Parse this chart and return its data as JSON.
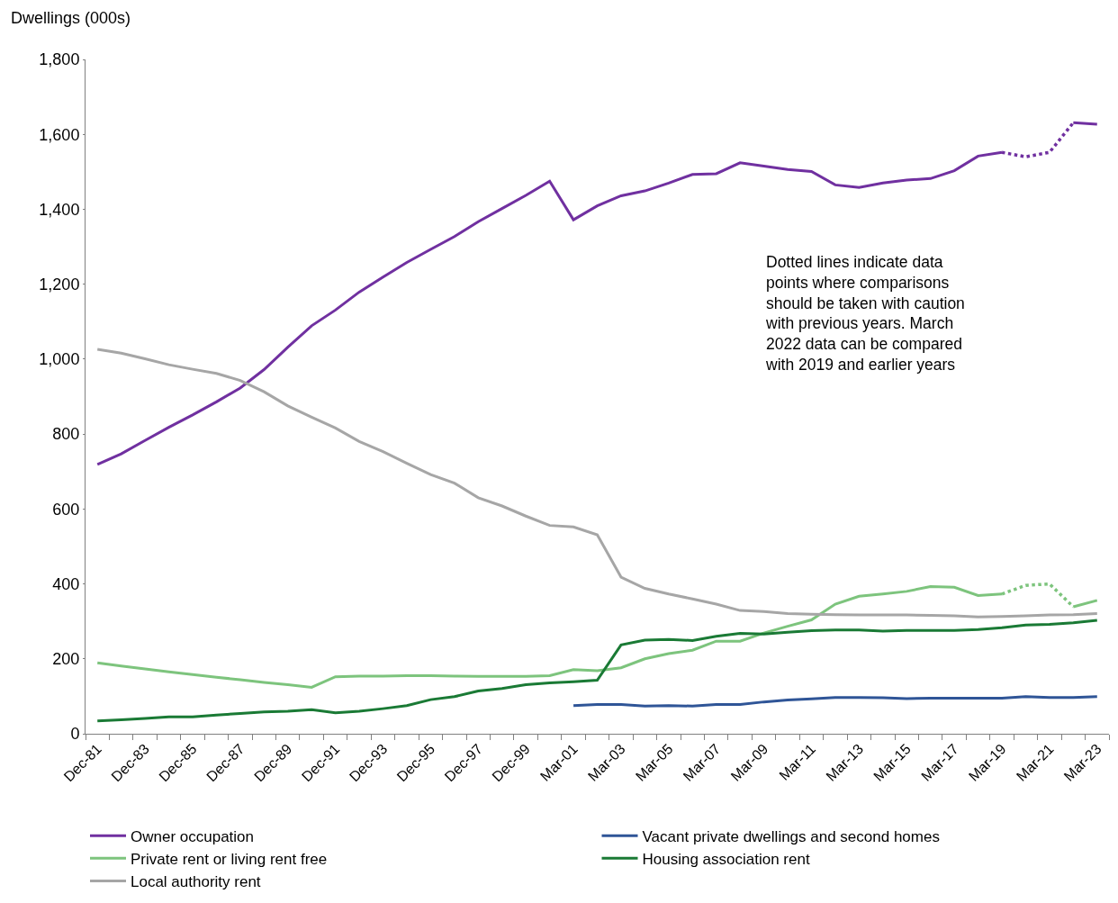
{
  "chart_data": {
    "type": "line",
    "ylabel": "Dwellings (000s)",
    "categories": [
      "Dec-81",
      null,
      "Dec-83",
      null,
      "Dec-85",
      null,
      "Dec-87",
      null,
      "Dec-89",
      null,
      "Dec-91",
      null,
      "Dec-93",
      null,
      "Dec-95",
      null,
      "Dec-97",
      null,
      "Dec-99",
      null,
      "Mar-01",
      null,
      "Mar-03",
      null,
      "Mar-05",
      null,
      "Mar-07",
      null,
      "Mar-09",
      null,
      "Mar-11",
      null,
      "Mar-13",
      null,
      "Mar-15",
      null,
      "Mar-17",
      null,
      "Mar-19",
      null,
      "Mar-21",
      null,
      "Mar-23"
    ],
    "series": [
      {
        "name": "Owner occupation",
        "color": "#7030a0",
        "values": [
          719,
          747,
          783,
          818,
          851,
          886,
          923,
          972,
          1032,
          1089,
          1131,
          1179,
          1219,
          1258,
          1293,
          1327,
          1367,
          1402,
          1437,
          1475,
          1372,
          1409,
          1436,
          1449,
          1470,
          1493,
          1495,
          1524,
          1515,
          1506,
          1501,
          1465,
          1458,
          1470,
          1478,
          1482,
          1503,
          1542,
          1552,
          null,
          null,
          null,
          null
        ]
      },
      {
        "color": "#7030a0",
        "line_style": "dotted",
        "values": [
          null,
          null,
          null,
          null,
          null,
          null,
          null,
          null,
          null,
          null,
          null,
          null,
          null,
          null,
          null,
          null,
          null,
          null,
          null,
          null,
          null,
          null,
          null,
          null,
          null,
          null,
          null,
          null,
          null,
          null,
          null,
          null,
          null,
          null,
          null,
          null,
          null,
          null,
          1552,
          1540,
          1552,
          1631,
          null
        ]
      },
      {
        "color": "#7030a0",
        "values": [
          null,
          null,
          null,
          null,
          null,
          null,
          null,
          null,
          null,
          null,
          null,
          null,
          null,
          null,
          null,
          null,
          null,
          null,
          null,
          null,
          null,
          null,
          null,
          null,
          null,
          null,
          null,
          null,
          null,
          null,
          null,
          null,
          null,
          null,
          null,
          null,
          null,
          null,
          null,
          null,
          null,
          1631,
          1627
        ]
      },
      {
        "name": "Vacant private dwellings and second homes",
        "color": "#2f5597",
        "values": [
          null,
          null,
          null,
          null,
          null,
          null,
          null,
          null,
          null,
          null,
          null,
          null,
          null,
          null,
          null,
          null,
          null,
          null,
          null,
          null,
          75,
          78,
          78,
          74,
          75,
          74,
          78,
          78,
          85,
          90,
          93,
          97,
          97,
          96,
          94,
          95,
          95,
          95,
          95,
          99,
          97,
          97,
          99
        ]
      },
      {
        "name": "Private rent or living rent free",
        "color": "#7dc47d",
        "values": [
          189,
          181,
          173,
          165,
          158,
          151,
          144,
          137,
          131,
          124,
          152,
          154,
          154,
          155,
          155,
          154,
          153,
          153,
          153,
          155,
          171,
          168,
          176,
          200,
          214,
          223,
          247,
          247,
          269,
          287,
          304,
          346,
          367,
          373,
          380,
          393,
          391,
          369,
          373,
          null,
          null,
          null,
          null
        ]
      },
      {
        "color": "#7dc47d",
        "line_style": "dotted",
        "values": [
          null,
          null,
          null,
          null,
          null,
          null,
          null,
          null,
          null,
          null,
          null,
          null,
          null,
          null,
          null,
          null,
          null,
          null,
          null,
          null,
          null,
          null,
          null,
          null,
          null,
          null,
          null,
          null,
          null,
          null,
          null,
          null,
          null,
          null,
          null,
          null,
          null,
          null,
          373,
          396,
          400,
          339,
          null
        ]
      },
      {
        "color": "#7dc47d",
        "values": [
          null,
          null,
          null,
          null,
          null,
          null,
          null,
          null,
          null,
          null,
          null,
          null,
          null,
          null,
          null,
          null,
          null,
          null,
          null,
          null,
          null,
          null,
          null,
          null,
          null,
          null,
          null,
          null,
          null,
          null,
          null,
          null,
          null,
          null,
          null,
          null,
          null,
          null,
          null,
          null,
          null,
          339,
          356
        ]
      },
      {
        "name": "Housing association rent",
        "color": "#1a7a35",
        "values": [
          34,
          37,
          41,
          45,
          45,
          50,
          54,
          58,
          60,
          64,
          56,
          60,
          67,
          75,
          91,
          99,
          114,
          121,
          131,
          136,
          139,
          143,
          237,
          250,
          252,
          249,
          260,
          268,
          266,
          271,
          275,
          277,
          277,
          274,
          276,
          276,
          276,
          278,
          283,
          290,
          292,
          296,
          303
        ]
      },
      {
        "name": "Local authority rent",
        "color": "#a6a6a6",
        "values": [
          1026,
          1016,
          1001,
          985,
          973,
          962,
          943,
          913,
          875,
          845,
          816,
          780,
          753,
          722,
          692,
          669,
          630,
          608,
          581,
          556,
          552,
          531,
          418,
          388,
          373,
          360,
          346,
          329,
          326,
          321,
          319,
          318,
          317,
          317,
          317,
          316,
          315,
          312,
          313,
          315,
          317,
          318,
          321
        ]
      }
    ],
    "ylim": [
      0,
      1800
    ],
    "yticks": [
      0,
      200,
      400,
      600,
      800,
      {
        "value": 1000,
        "label": "1,000"
      },
      {
        "value": 1200,
        "label": "1,200"
      },
      {
        "value": 1400,
        "label": "1,400"
      },
      {
        "value": 1600,
        "label": "1,600"
      },
      {
        "value": 1800,
        "label": "1,800"
      }
    ],
    "annotations": [
      "Dotted lines indicate data\npoints where comparisons\nshould be taken with caution\nwith previous years. March\n2022 data can be compared\nwith 2019 and earlier years"
    ],
    "legend": "bottom",
    "grid": false,
    "marker": "none",
    "line_style": "solid"
  }
}
